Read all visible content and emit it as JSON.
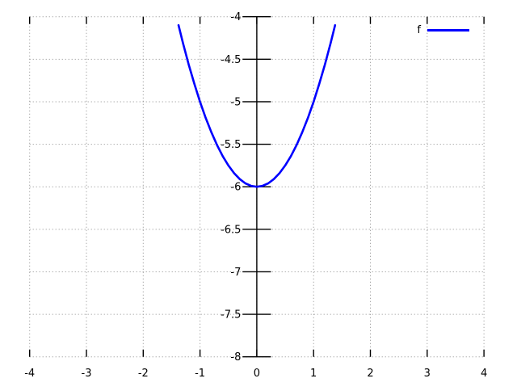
{
  "window": {
    "background": "#ffffff"
  },
  "chart_data": {
    "type": "line",
    "title": "",
    "xlabel": "",
    "ylabel": "",
    "xlim": [
      -4,
      4
    ],
    "ylim": [
      -8,
      -4
    ],
    "xticks": [
      -4,
      -3,
      -2,
      -1,
      0,
      1,
      2,
      3,
      4
    ],
    "xtick_labels": [
      "-4",
      "-3",
      "-2",
      "-1",
      "0",
      "1",
      "2",
      "3",
      "4"
    ],
    "yticks": [
      -4,
      -4.5,
      -5,
      -5.5,
      -6,
      -6.5,
      -7,
      -7.5,
      -8
    ],
    "ytick_labels": [
      "-4",
      "-4.5",
      "-5",
      "-5.5",
      "-6",
      "-6.5",
      "-7",
      "-7.5",
      "-8"
    ],
    "grid": true,
    "grid_style": "dotted",
    "grid_color": "#8c8c8c",
    "axis_color": "#000000",
    "y_axis_position_x": 0,
    "legend_position": "top-right",
    "series": [
      {
        "name": "f",
        "color": "#0000ff",
        "shape": "parabola, vertex (0,-6), clipped near y=-4.1",
        "points": [
          [
            -1.378,
            -4.1
          ],
          [
            -1.3,
            -4.31
          ],
          [
            -1.2,
            -4.56
          ],
          [
            -1.1,
            -4.79
          ],
          [
            -1.0,
            -5.0
          ],
          [
            -0.9,
            -5.19
          ],
          [
            -0.8,
            -5.36
          ],
          [
            -0.7,
            -5.51
          ],
          [
            -0.6,
            -5.64
          ],
          [
            -0.5,
            -5.75
          ],
          [
            -0.4,
            -5.84
          ],
          [
            -0.3,
            -5.91
          ],
          [
            -0.2,
            -5.96
          ],
          [
            -0.1,
            -5.99
          ],
          [
            0.0,
            -6.0
          ],
          [
            0.1,
            -5.99
          ],
          [
            0.2,
            -5.96
          ],
          [
            0.3,
            -5.91
          ],
          [
            0.4,
            -5.84
          ],
          [
            0.5,
            -5.75
          ],
          [
            0.6,
            -5.64
          ],
          [
            0.7,
            -5.51
          ],
          [
            0.8,
            -5.36
          ],
          [
            0.9,
            -5.19
          ],
          [
            1.0,
            -5.0
          ],
          [
            1.1,
            -4.79
          ],
          [
            1.2,
            -4.56
          ],
          [
            1.3,
            -4.31
          ],
          [
            1.378,
            -4.1
          ]
        ]
      }
    ]
  },
  "legend": {
    "series_label": "f"
  }
}
